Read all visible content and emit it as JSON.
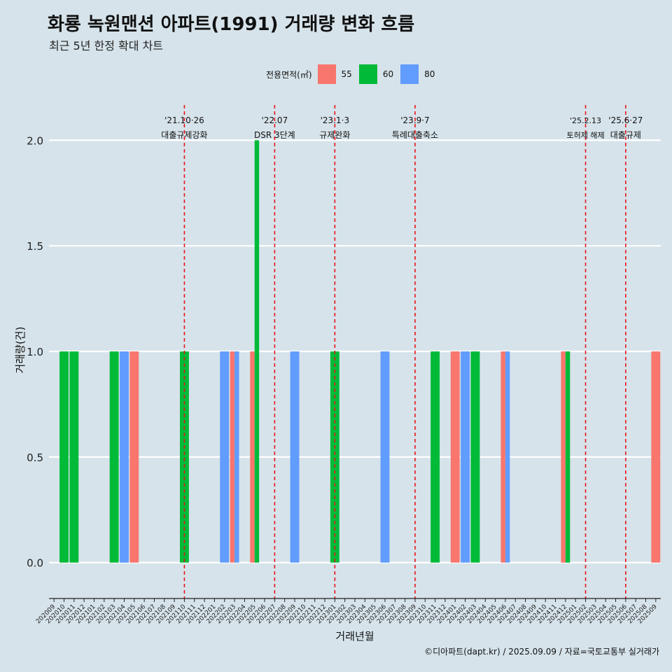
{
  "header": {
    "title": "화룡 녹원맨션 아파트(1991) 거래량 변화 흐름",
    "subtitle": "최근 5년 한정 확대 차트"
  },
  "legend": {
    "title": "전용면적(㎡)",
    "items": [
      {
        "label": "55",
        "color": "#f8766d"
      },
      {
        "label": "60",
        "color": "#00ba38"
      },
      {
        "label": "80",
        "color": "#619cff"
      }
    ]
  },
  "footer": "©디아파트(dapt.kr) / 2025.09.09 / 자료=국토교통부 실거래가",
  "chart_data": {
    "type": "bar",
    "xlabel": "거래년월",
    "ylabel": "거래량(건)",
    "ylim": [
      -0.17,
      2.2
    ],
    "yticks": [
      "0.0",
      "0.5",
      "1.0",
      "1.5",
      "2.0"
    ],
    "grid": true,
    "legend_position": "top",
    "categories": [
      "202009",
      "202010",
      "202011",
      "202012",
      "202101",
      "202102",
      "202103",
      "202104",
      "202105",
      "202106",
      "202107",
      "202108",
      "202109",
      "202110",
      "202111",
      "202112",
      "202201",
      "202202",
      "202203",
      "202204",
      "202205",
      "202206",
      "202207",
      "202208",
      "202209",
      "202210",
      "202211",
      "202212",
      "202301",
      "202302",
      "202303",
      "202304",
      "202305",
      "202306",
      "202307",
      "202308",
      "202309",
      "202310",
      "202311",
      "202312",
      "202401",
      "202402",
      "202403",
      "202404",
      "202405",
      "202406",
      "202407",
      "202408",
      "202409",
      "202410",
      "202411",
      "202412",
      "202501",
      "202502",
      "202503",
      "202504",
      "202505",
      "202506",
      "202507",
      "202508",
      "202509"
    ],
    "bars": [
      {
        "month": "202010",
        "series": "60",
        "value": 1
      },
      {
        "month": "202011",
        "series": "60",
        "value": 1
      },
      {
        "month": "202103",
        "series": "60",
        "value": 1
      },
      {
        "month": "202104",
        "series": "80",
        "value": 1
      },
      {
        "month": "202105",
        "series": "55",
        "value": 1
      },
      {
        "month": "202110",
        "series": "60",
        "value": 1
      },
      {
        "month": "202202",
        "series": "80",
        "value": 1
      },
      {
        "month": "202203",
        "series": "55",
        "value": 1
      },
      {
        "month": "202203",
        "series": "80",
        "value": 1
      },
      {
        "month": "202205",
        "series": "55",
        "value": 1
      },
      {
        "month": "202205",
        "series": "60",
        "value": 2
      },
      {
        "month": "202209",
        "series": "80",
        "value": 1
      },
      {
        "month": "202301",
        "series": "60",
        "value": 1
      },
      {
        "month": "202306",
        "series": "80",
        "value": 1
      },
      {
        "month": "202311",
        "series": "60",
        "value": 1
      },
      {
        "month": "202401",
        "series": "55",
        "value": 1
      },
      {
        "month": "202402",
        "series": "80",
        "value": 1
      },
      {
        "month": "202403",
        "series": "60",
        "value": 1
      },
      {
        "month": "202406",
        "series": "55",
        "value": 1
      },
      {
        "month": "202406",
        "series": "80",
        "value": 1
      },
      {
        "month": "202412",
        "series": "55",
        "value": 1
      },
      {
        "month": "202412",
        "series": "60",
        "value": 1
      },
      {
        "month": "202509",
        "series": "55",
        "value": 1
      }
    ],
    "annotations": [
      {
        "month": "202110",
        "date": "'21.10·26",
        "text": "대출규제강화"
      },
      {
        "month": "202207",
        "date": "'22.07",
        "text": "DSR 3단계"
      },
      {
        "month": "202301",
        "date": "'23.1·3",
        "text": "규제완화"
      },
      {
        "month": "202309",
        "date": "'23.9·7",
        "text": "특례대출축소"
      },
      {
        "month": "202502",
        "date": "'25.2.13",
        "text": "토허제 해제"
      },
      {
        "month": "202506",
        "date": "'25.6·27",
        "text": "대출규제"
      }
    ]
  }
}
